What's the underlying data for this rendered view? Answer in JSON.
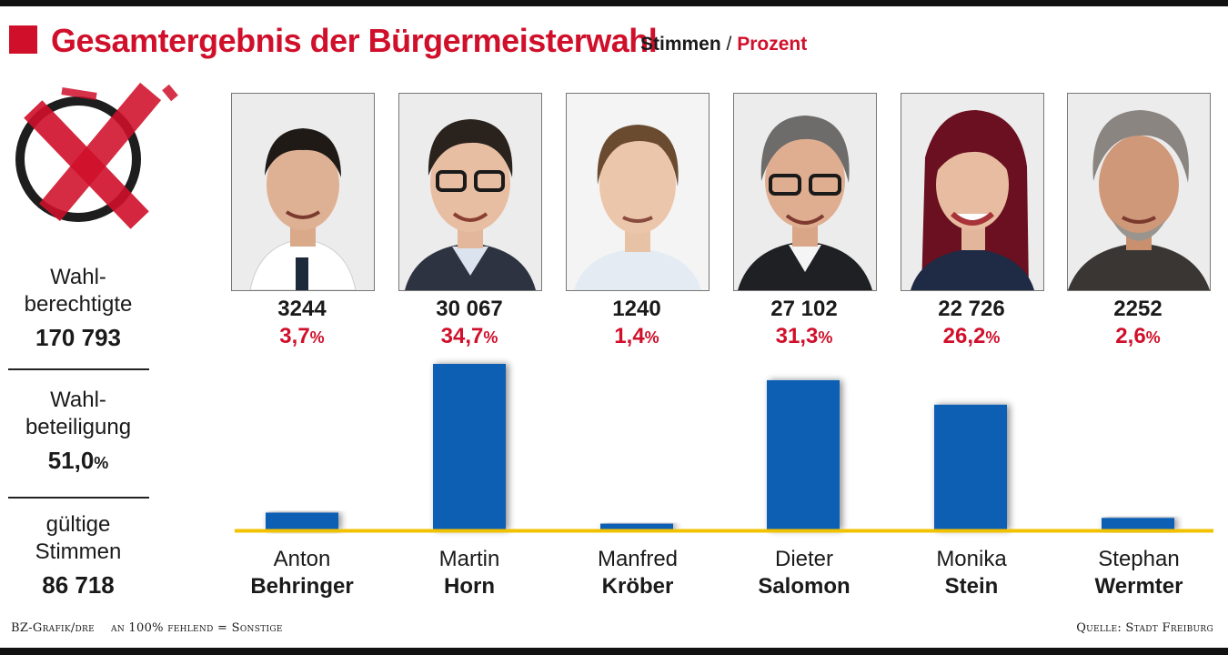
{
  "title": "Gesamtergebnis der Bürgermeisterwahl",
  "subtitle": {
    "stimmen": "Stimmen",
    "slash": "/",
    "prozent": "Prozent"
  },
  "stats": {
    "wahlberechtigte": {
      "label1": "Wahl-",
      "label2": "berechtigte",
      "value": "170 793"
    },
    "wahlbeteiligung": {
      "label1": "Wahl-",
      "label2": "beteiligung",
      "value": "51,0",
      "unit": "%"
    },
    "gueltige": {
      "label1": "gültige",
      "label2": "Stimmen",
      "value": "86 718"
    }
  },
  "footer": {
    "left": "BZ-Grafik/dre",
    "note": "an 100% fehlend = Sonstige",
    "right": "Quelle: Stadt Freiburg"
  },
  "colors": {
    "accent": "#d0102b",
    "bar": "#0a5fb4",
    "baseline": "#f2c200"
  },
  "chart_data": {
    "type": "bar",
    "categories": [
      "Anton Behringer",
      "Martin Horn",
      "Manfred Kröber",
      "Dieter Salomon",
      "Monika Stein",
      "Stephan Wermter"
    ],
    "series": [
      {
        "name": "Stimmen",
        "values": [
          3244,
          30067,
          1240,
          27102,
          22726,
          2252
        ]
      },
      {
        "name": "Prozent",
        "values": [
          3.7,
          34.7,
          1.4,
          31.3,
          26.2,
          2.6
        ]
      }
    ],
    "ylim": [
      0,
      34.7
    ]
  },
  "candidates": [
    {
      "first": "Anton",
      "last": "Behringer",
      "votes": "3244",
      "pct": "3,7"
    },
    {
      "first": "Martin",
      "last": "Horn",
      "votes": "30 067",
      "pct": "34,7"
    },
    {
      "first": "Manfred",
      "last": "Kröber",
      "votes": "1240",
      "pct": "1,4"
    },
    {
      "first": "Dieter",
      "last": "Salomon",
      "votes": "27 102",
      "pct": "31,3"
    },
    {
      "first": "Monika",
      "last": "Stein",
      "votes": "22 726",
      "pct": "26,2"
    },
    {
      "first": "Stephan",
      "last": "Wermter",
      "votes": "2252",
      "pct": "2,6"
    }
  ],
  "pct_unit": "%"
}
